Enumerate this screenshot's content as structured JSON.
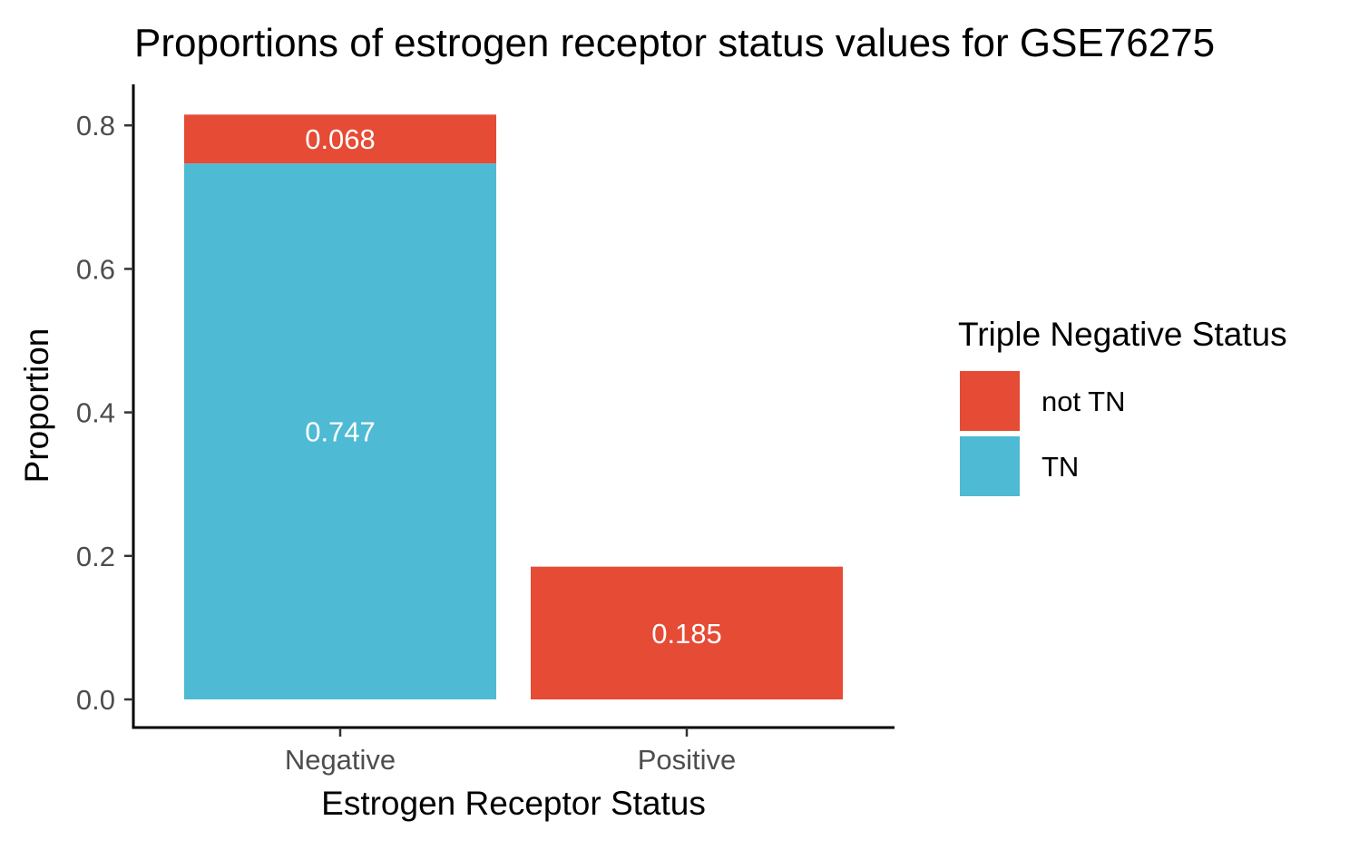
{
  "chart_data": {
    "type": "bar",
    "stacked": true,
    "title": "Proportions of estrogen receptor status values for GSE76275",
    "xlabel": "Estrogen Receptor Status",
    "ylabel": "Proportion",
    "categories": [
      "Negative",
      "Positive"
    ],
    "series": [
      {
        "name": "TN",
        "color": "#4EBAD4",
        "values": [
          0.747,
          0
        ],
        "labels": [
          "0.747",
          ""
        ]
      },
      {
        "name": "not TN",
        "color": "#E64B35",
        "values": [
          0.068,
          0.185
        ],
        "labels": [
          "0.068",
          "0.185"
        ]
      }
    ],
    "ylim": [
      0,
      0.85
    ],
    "yticks": [
      {
        "value": 0.0,
        "label": "0.0"
      },
      {
        "value": 0.2,
        "label": "0.2"
      },
      {
        "value": 0.4,
        "label": "0.4"
      },
      {
        "value": 0.6,
        "label": "0.6"
      },
      {
        "value": 0.8,
        "label": "0.8"
      }
    ],
    "grid": false,
    "legend": {
      "title": "Triple Negative Status",
      "position": "right",
      "entries": [
        {
          "label": "not TN",
          "color": "#E64B35"
        },
        {
          "label": "TN",
          "color": "#4EBAD4"
        }
      ]
    }
  }
}
